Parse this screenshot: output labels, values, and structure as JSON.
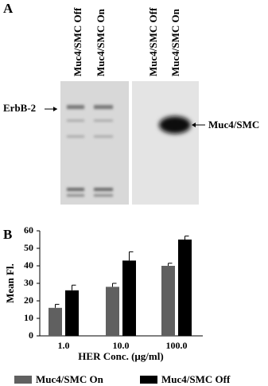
{
  "panel_a": {
    "label": "A",
    "lanes": [
      "Muc4/SMC Off",
      "Muc4/SMC On",
      "Muc4/SMC Off",
      "Muc4/SMC On"
    ],
    "left_marker": "ErbB-2",
    "right_marker": "Muc4/SMC"
  },
  "chart_data": {
    "type": "bar",
    "panel_label": "B",
    "categories": [
      "1.0",
      "10.0",
      "100.0"
    ],
    "series": [
      {
        "name": "Muc4/SMC On",
        "color": "#606060",
        "values": [
          16,
          28,
          40
        ],
        "errors": [
          2,
          2,
          1.5
        ]
      },
      {
        "name": "Muc4/SMC Off",
        "color": "#000000",
        "values": [
          26,
          43,
          55
        ],
        "errors": [
          3,
          5,
          2
        ]
      }
    ],
    "xlabel": "HER Conc. (μg/ml)",
    "ylabel": "Mean Fl.",
    "ylim": [
      0,
      60
    ],
    "yticks": [
      0,
      10,
      20,
      30,
      40,
      50,
      60
    ]
  }
}
